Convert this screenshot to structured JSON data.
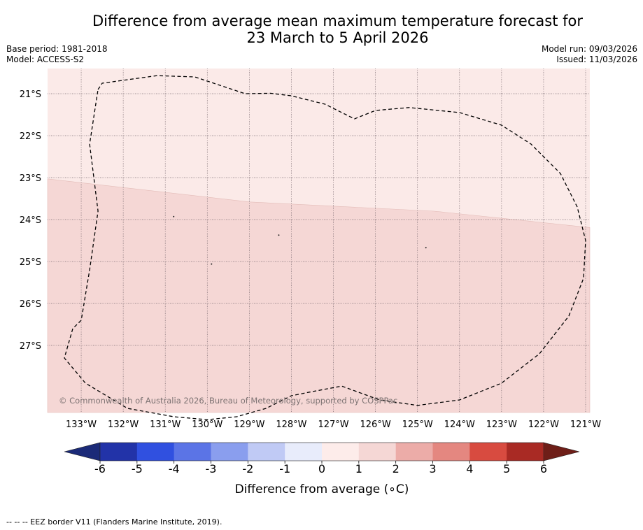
{
  "title": {
    "line1": "Difference from average mean maximum temperature forecast for",
    "line2": "23 March to 5 April 2026"
  },
  "header_left": {
    "base_period": "Base period: 1981-2018",
    "model": "Model: ACCESS-S2"
  },
  "header_right": {
    "model_run": "Model run: 09/03/2026",
    "issued": "Issued: 11/03/2026"
  },
  "map": {
    "lon_labels": [
      "133°W",
      "132°W",
      "131°W",
      "130°W",
      "129°W",
      "128°W",
      "127°W",
      "126°W",
      "125°W",
      "124°W",
      "123°W",
      "122°W",
      "121°W"
    ],
    "lat_labels": [
      "21°S",
      "22°S",
      "23°S",
      "24°S",
      "25°S",
      "26°S",
      "27°S"
    ],
    "lon_values": [
      -133,
      -132,
      -131,
      -130,
      -129,
      -128,
      -127,
      -126,
      -125,
      -124,
      -123,
      -122,
      -121
    ],
    "lat_values": [
      -21,
      -22,
      -23,
      -24,
      -25,
      -26,
      -27
    ],
    "extent": {
      "lon_min": -133.8,
      "lon_max": -120.9,
      "lat_min": -28.6,
      "lat_max": -20.4
    },
    "copyright": "© Commonwealth of Australia 2026, Bureau of Meteorology, supported by COSPPac",
    "anomaly_regions": [
      {
        "range": "0 to 1",
        "color": "#fbeae8"
      },
      {
        "range": "1 to 2",
        "color": "#f5d7d5"
      }
    ],
    "region_boundary_lat_by_lon": [
      {
        "lon": -133.8,
        "lat": -23.03
      },
      {
        "lon": -129.0,
        "lat": -23.58
      },
      {
        "lon": -124.6,
        "lat": -23.8
      },
      {
        "lon": -120.9,
        "lat": -24.19
      }
    ],
    "eez_border": [
      [
        -132.6,
        -20.9
      ],
      [
        -132.5,
        -20.75
      ],
      [
        -131.2,
        -20.57
      ],
      [
        -130.3,
        -20.6
      ],
      [
        -129.1,
        -21.0
      ],
      [
        -128.5,
        -20.99
      ],
      [
        -128.0,
        -21.05
      ],
      [
        -127.2,
        -21.25
      ],
      [
        -126.5,
        -21.6
      ],
      [
        -126.0,
        -21.4
      ],
      [
        -125.2,
        -21.33
      ],
      [
        -124.0,
        -21.45
      ],
      [
        -123.0,
        -21.75
      ],
      [
        -122.3,
        -22.2
      ],
      [
        -121.6,
        -22.9
      ],
      [
        -121.2,
        -23.7
      ],
      [
        -121.0,
        -24.5
      ],
      [
        -121.05,
        -25.4
      ],
      [
        -121.4,
        -26.3
      ],
      [
        -122.1,
        -27.2
      ],
      [
        -123.0,
        -27.9
      ],
      [
        -124.0,
        -28.3
      ],
      [
        -125.0,
        -28.43
      ],
      [
        -125.9,
        -28.3
      ],
      [
        -126.8,
        -27.97
      ],
      [
        -127.5,
        -28.1
      ],
      [
        -128.0,
        -28.2
      ],
      [
        -128.6,
        -28.5
      ],
      [
        -129.3,
        -28.7
      ],
      [
        -130.0,
        -28.77
      ],
      [
        -130.8,
        -28.7
      ],
      [
        -131.9,
        -28.5
      ],
      [
        -132.9,
        -27.9
      ],
      [
        -133.4,
        -27.3
      ],
      [
        -133.2,
        -26.6
      ],
      [
        -133.0,
        -26.4
      ],
      [
        -132.8,
        -25.2
      ],
      [
        -132.6,
        -23.8
      ],
      [
        -132.8,
        -22.2
      ],
      [
        -132.6,
        -20.9
      ]
    ]
  },
  "colorbar": {
    "label": "Difference from average (∘C)",
    "ticks": [
      "-6",
      "-5",
      "-4",
      "-3",
      "-2",
      "-1",
      "0",
      "1",
      "2",
      "3",
      "4",
      "5",
      "6"
    ],
    "tick_values": [
      -6,
      -5,
      -4,
      -3,
      -2,
      -1,
      0,
      1,
      2,
      3,
      4,
      5,
      6
    ],
    "under_color": "#1b2a78",
    "over_color": "#6e1e18",
    "colors": [
      "#2233a8",
      "#3050e0",
      "#5b74e6",
      "#8a9eee",
      "#c0caf5",
      "#e8ecfb",
      "#fdecea",
      "#f5d7d5",
      "#ecaca8",
      "#e48780",
      "#d84b40",
      "#a92a24"
    ]
  },
  "footnote": "--  --  -- EEZ border V11 (Flanders Marine Institute, 2019)."
}
